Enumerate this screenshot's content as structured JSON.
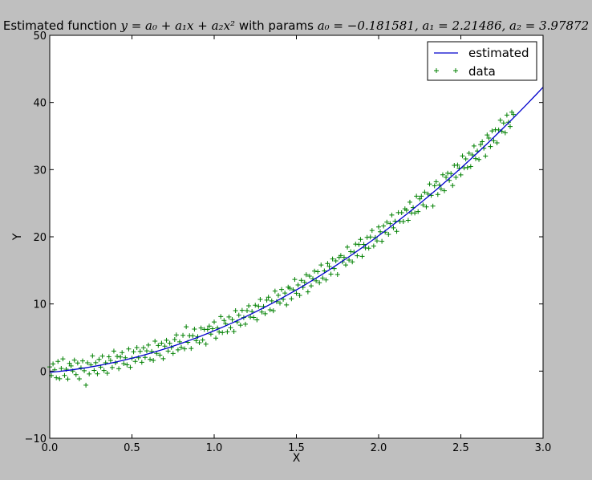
{
  "chart_data": {
    "type": "scatter",
    "title": {
      "prefix": "Estimated function ",
      "formula": "y = a₀ + a₁x + a₂x²",
      "middle": "  with params ",
      "params": "a₀ = −0.181581, a₁ = 2.21486, a₂ = 3.97872"
    },
    "xlabel": "X",
    "ylabel": "Y",
    "xlim": [
      0.0,
      3.0
    ],
    "ylim": [
      -10,
      50
    ],
    "xticks": [
      "0.0",
      "0.5",
      "1.0",
      "1.5",
      "2.0",
      "2.5",
      "3.0"
    ],
    "yticks": [
      "−10",
      "0",
      "10",
      "20",
      "30",
      "40",
      "50"
    ],
    "grid": false,
    "legend_position": "top-right",
    "params": {
      "a0": -0.181581,
      "a1": 2.21486,
      "a2": 3.97872
    },
    "series": [
      {
        "name": "estimated",
        "kind": "line",
        "color": "#0000cc",
        "x_start": 0.0,
        "x_end": 3.0,
        "samples": 61
      },
      {
        "name": "data",
        "kind": "points",
        "marker": "+",
        "color": "#008000",
        "x_start": 0.0,
        "x_step": 0.01,
        "residuals": [
          0.8,
          -0.5,
          1.2,
          0.3,
          -0.9,
          1.5,
          -1.1,
          0.4,
          1.8,
          -0.7,
          0.2,
          -1.3,
          1.0,
          0.6,
          -0.2,
          1.4,
          -0.8,
          0.9,
          -1.5,
          0.1,
          1.1,
          -0.4,
          -2.6,
          0.7,
          -1.0,
          0.3,
          1.6,
          -0.6,
          0.5,
          -1.2,
          0.9,
          -0.3,
          1.3,
          -0.9,
          0.2,
          -1.4,
          1.0,
          0.4,
          -0.7,
          1.7,
          -0.1,
          0.8,
          -1.1,
          0.6,
          1.2,
          -0.5,
          0.3,
          -0.8,
          1.5,
          -1.3,
          0.0,
          0.9,
          -0.6,
          1.4,
          -0.2,
          0.7,
          -1.0,
          1.1,
          -0.4,
          0.5,
          1.3,
          -0.9,
          0.2,
          -1.2,
          1.6,
          -0.3,
          0.8,
          -0.7,
          1.0,
          -1.4,
          0.4,
          1.2,
          -0.5,
          0.6,
          -0.1,
          -1.1,
          0.9,
          1.5,
          -0.8,
          0.3,
          -0.6,
          1.1,
          -1.0,
          2.2,
          -0.2,
          0.7,
          -1.3,
          0.5,
          1.4,
          -0.4,
          0.1,
          -0.9,
          1.2,
          -0.7,
          0.8,
          -1.5,
          0.6,
          1.0,
          -0.3,
          0.4,
          1.3,
          -1.2,
          0.2,
          -0.5,
          1.7,
          -0.8,
          0.9,
          0.3,
          -1.0,
          1.1,
          -0.6,
          0.5,
          -1.4,
          1.6,
          -0.2,
          0.7,
          -0.9,
          1.2,
          0.0,
          -1.1,
          0.8,
          1.4,
          -0.4,
          0.3,
          -0.7,
          1.0,
          -1.3,
          0.6,
          1.5,
          -0.5,
          0.2,
          -1.0,
          0.9,
          1.2,
          -0.8,
          0.4,
          -1.2,
          1.6,
          -0.1,
          0.7,
          -0.6,
          1.3,
          -0.3,
          0.5,
          -1.4,
          1.1,
          0.8,
          -0.9,
          0.3,
          1.7,
          -0.5,
          0.6,
          -1.1,
          1.0,
          -0.2,
          0.4,
          1.4,
          -1.3,
          0.9,
          -0.7,
          0.2,
          1.2,
          -0.4,
          0.8,
          -1.0,
          1.5,
          -0.6,
          0.3,
          -1.2,
          1.1,
          0.5,
          -0.8,
          1.3,
          -0.3,
          0.7,
          -1.5,
          0.9,
          1.0,
          -0.1,
          0.4,
          -0.9,
          1.6,
          -0.5,
          0.6,
          -1.1,
          0.2,
          1.2,
          -0.7,
          0.8,
          1.4,
          -1.3,
          0.3,
          -0.4,
          1.0,
          -0.8,
          0.7,
          1.5,
          -1.0,
          0.1,
          -0.6,
          1.3,
          0.4,
          -1.2,
          0.9,
          -0.2,
          1.1,
          -0.9,
          0.5,
          1.6,
          -0.5,
          0.3,
          -1.4,
          1.2,
          -0.3,
          0.8,
          -0.7,
          1.0,
          0.6,
          -1.1,
          1.4,
          -0.4,
          0.2,
          -0.8,
          1.5,
          -1.0,
          0.7,
          0.9,
          -0.6,
          1.1,
          -1.3,
          0.4,
          1.7,
          -0.2,
          -2.0,
          0.8,
          1.2,
          -0.9,
          0.3,
          -0.5,
          1.4,
          -1.2,
          0.6,
          1.0,
          -0.3,
          0.5,
          -1.5,
          1.3,
          -0.7,
          0.9,
          0.2,
          -1.0,
          1.6,
          -0.4,
          0.7,
          -0.8,
          1.1,
          -1.1,
          0.4,
          1.5,
          -0.6,
          0.3,
          -1.2,
          0.8,
          1.0,
          -0.2,
          -1.6,
          1.3,
          0.6,
          -0.9,
          1.2,
          -0.5,
          0.9,
          -1.3,
          0.4,
          1.6,
          -0.3,
          0.7,
          -1.0,
          1.4,
          0.1,
          -0.8,
          1.1,
          0.5
        ]
      }
    ]
  }
}
